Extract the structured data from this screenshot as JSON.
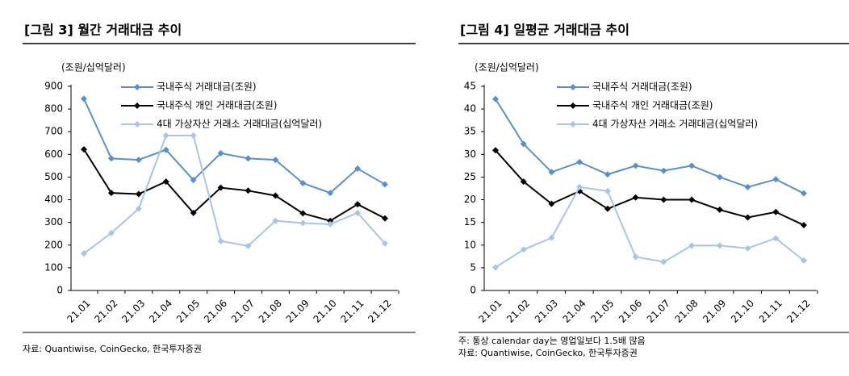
{
  "chart_data": [
    {
      "type": "line",
      "title": "[그림 3] 월간 거래대금 추이",
      "y_label": "(조원/십억달러)",
      "categories": [
        "21.01",
        "21.02",
        "21.03",
        "21.04",
        "21.05",
        "21.06",
        "21.07",
        "21.08",
        "21.09",
        "21.10",
        "21.11",
        "21.12"
      ],
      "series": [
        {
          "name": "국내주식 거래대금(조원)",
          "color": "#5b8fc9",
          "values": [
            845,
            582,
            576,
            620,
            487,
            605,
            582,
            576,
            473,
            430,
            537,
            468
          ]
        },
        {
          "name": "국내주식 개인 거래대금(조원)",
          "color": "#000000",
          "values": [
            622,
            430,
            425,
            480,
            342,
            453,
            440,
            418,
            340,
            307,
            380,
            318
          ]
        },
        {
          "name": "4대 가상자산 거래소 거래대금(십억달러)",
          "color": "#a9c4e8",
          "values": [
            163,
            253,
            360,
            683,
            683,
            218,
            196,
            307,
            297,
            292,
            342,
            207
          ]
        }
      ],
      "ylim": [
        0,
        900
      ],
      "yticks": [
        0,
        100,
        200,
        300,
        400,
        500,
        600,
        700,
        800,
        900
      ],
      "grid": false,
      "legend": "top",
      "notes": [
        "자료: Quantiwise, CoinGecko, 한국투자증권"
      ]
    },
    {
      "type": "line",
      "title": "[그림 4] 일평균 거래대금 추이",
      "y_label": "(조원/십억달러)",
      "categories": [
        "21.01",
        "21.02",
        "21.03",
        "21.04",
        "21.05",
        "21.06",
        "21.07",
        "21.08",
        "21.09",
        "21.10",
        "21.11",
        "21.12"
      ],
      "series": [
        {
          "name": "국내주식 거래대금(조원)",
          "color": "#5b8fc9",
          "values": [
            42.2,
            32.3,
            26.1,
            28.3,
            25.6,
            27.5,
            26.4,
            27.5,
            25.0,
            22.8,
            24.5,
            21.4
          ]
        },
        {
          "name": "국내주식 개인 거래대금(조원)",
          "color": "#000000",
          "values": [
            30.9,
            24.0,
            19.1,
            21.9,
            18.0,
            20.5,
            20.0,
            20.0,
            17.8,
            16.1,
            17.3,
            14.4
          ]
        },
        {
          "name": "4대 가상자산 거래소 거래대금(십억달러)",
          "color": "#a9c4e8",
          "values": [
            5.1,
            9.0,
            11.6,
            22.8,
            21.9,
            7.4,
            6.3,
            9.9,
            9.9,
            9.3,
            11.5,
            6.6
          ]
        }
      ],
      "ylim": [
        0,
        45
      ],
      "yticks": [
        0,
        5,
        10,
        15,
        20,
        25,
        30,
        35,
        40,
        45
      ],
      "grid": false,
      "legend": "top",
      "notes": [
        "주: 통상 calendar day는 영업일보다 1.5배 많음",
        "자료: Quantiwise, CoinGecko, 한국투자증권"
      ]
    }
  ]
}
